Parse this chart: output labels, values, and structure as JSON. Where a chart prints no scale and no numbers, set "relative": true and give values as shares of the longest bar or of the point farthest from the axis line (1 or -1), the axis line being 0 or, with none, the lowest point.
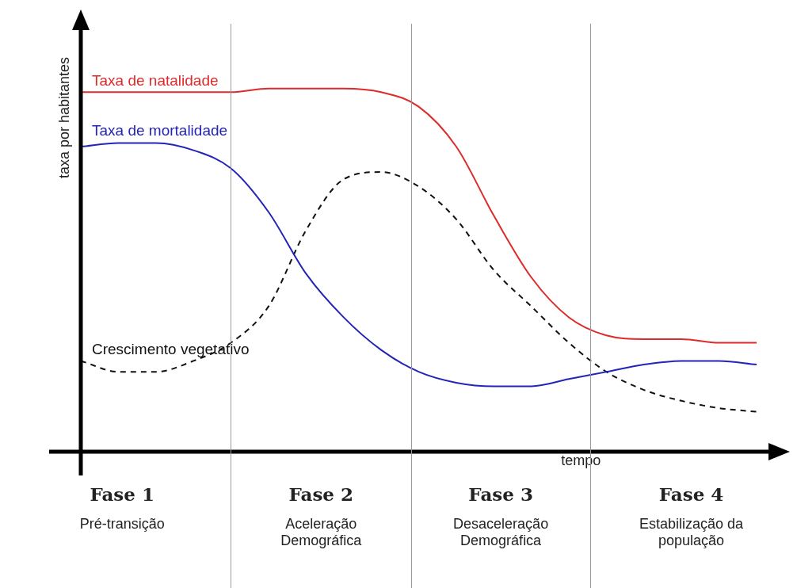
{
  "chart_data": {
    "type": "line",
    "relative": true,
    "xlabel": "tempo",
    "ylabel": "taxa por habitantes",
    "categories": [
      null,
      null,
      null,
      null,
      null,
      null,
      null,
      null,
      null,
      null,
      null,
      null,
      null,
      null,
      null,
      null,
      null,
      null,
      null
    ],
    "series": [
      {
        "name": "Taxa de natalidade",
        "color": "#dd2b2b",
        "values": [
          0.99,
          0.99,
          0.99,
          0.99,
          0.99,
          1,
          1,
          1,
          0.99,
          0.95,
          0.84,
          0.65,
          0.48,
          0.37,
          0.32,
          0.31,
          0.31,
          0.3,
          0.3
        ]
      },
      {
        "name": "Taxa de mortalidade",
        "color": "#2424b8",
        "values": [
          0.84,
          0.85,
          0.85,
          0.83,
          0.78,
          0.66,
          0.49,
          0.37,
          0.28,
          0.22,
          0.19,
          0.18,
          0.18,
          0.2,
          0.22,
          0.24,
          0.25,
          0.25,
          0.24
        ]
      },
      {
        "name": "Crescimento vegetativo",
        "color": "#111111",
        "line_style": "dashed",
        "values": [
          0.25,
          0.22,
          0.22,
          0.25,
          0.3,
          0.4,
          0.61,
          0.75,
          0.77,
          0.73,
          0.64,
          0.5,
          0.4,
          0.3,
          0.22,
          0.17,
          0.14,
          0.12,
          0.11
        ]
      }
    ],
    "annotations": [
      "Fase 1",
      "Pré-transição",
      "Fase 2",
      "Aceleração Demográfica",
      "Fase 3",
      "Desaceleração Demográfica",
      "Fase 4",
      "Estabilização da população"
    ],
    "marker": "none",
    "grid": false,
    "legend": false
  }
}
